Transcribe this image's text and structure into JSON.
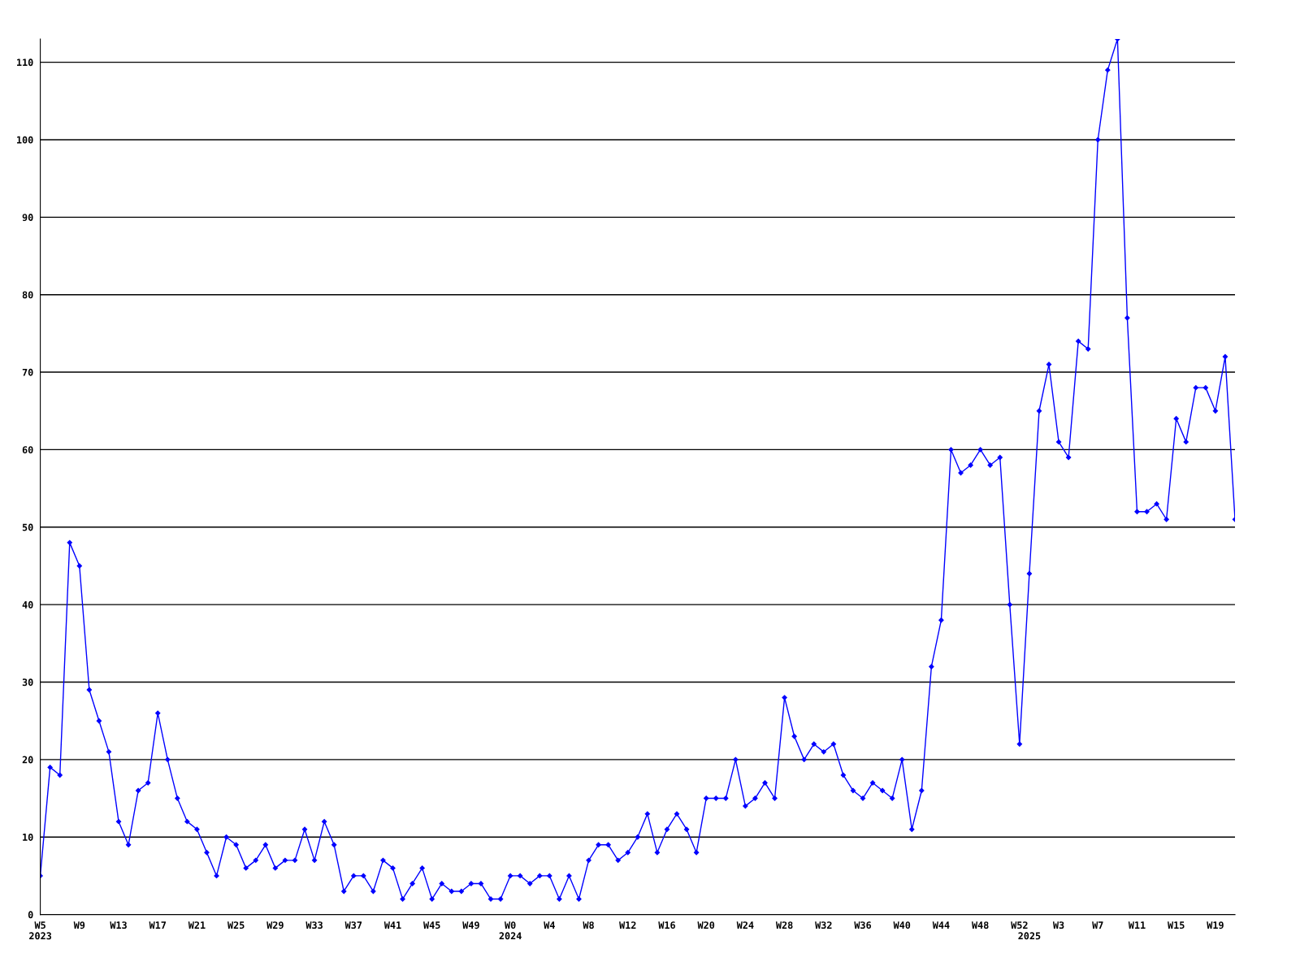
{
  "chart_data": {
    "type": "line",
    "categories": [
      "W5\n2023",
      null,
      null,
      null,
      "W9",
      null,
      null,
      null,
      "W13",
      null,
      null,
      null,
      "W17",
      null,
      null,
      null,
      "W21",
      null,
      null,
      null,
      "W25",
      null,
      null,
      null,
      "W29",
      null,
      null,
      null,
      "W33",
      null,
      null,
      null,
      "W37",
      null,
      null,
      null,
      "W41",
      null,
      null,
      null,
      "W45",
      null,
      null,
      null,
      "W49",
      null,
      null,
      null,
      "W0\n2024",
      null,
      null,
      null,
      "W4",
      null,
      null,
      null,
      "W8",
      null,
      null,
      null,
      "W12",
      null,
      null,
      null,
      "W16",
      null,
      null,
      null,
      "W20",
      null,
      null,
      null,
      "W24",
      null,
      null,
      null,
      "W28",
      null,
      null,
      null,
      "W32",
      null,
      null,
      null,
      "W36",
      null,
      null,
      null,
      "W40",
      null,
      null,
      null,
      "W44",
      null,
      null,
      null,
      "W48",
      null,
      null,
      null,
      "W52",
      "\n2025",
      null,
      null,
      "W3",
      null,
      null,
      null,
      "W7",
      null,
      null,
      null,
      "W11",
      null,
      null,
      null,
      "W15",
      null,
      null,
      null,
      "W19",
      null,
      null
    ],
    "series": [
      {
        "color": "#0000ff",
        "values": [
          5,
          19,
          18,
          48,
          45,
          29,
          25,
          21,
          12,
          9,
          16,
          17,
          26,
          20,
          15,
          12,
          11,
          8,
          5,
          10,
          9,
          6,
          7,
          9,
          6,
          7,
          7,
          11,
          7,
          12,
          9,
          3,
          5,
          5,
          3,
          7,
          6,
          2,
          4,
          6,
          2,
          4,
          3,
          3,
          4,
          4,
          2,
          2,
          5,
          5,
          4,
          5,
          5,
          2,
          5,
          2,
          7,
          9,
          9,
          7,
          8,
          10,
          13,
          8,
          11,
          13,
          11,
          8,
          15,
          15,
          15,
          20,
          14,
          15,
          17,
          15,
          28,
          23,
          20,
          22,
          21,
          22,
          18,
          16,
          15,
          17,
          16,
          15,
          20,
          11,
          16,
          32,
          38,
          60,
          57,
          58,
          60,
          58,
          59,
          40,
          22,
          44,
          65,
          71,
          61,
          59,
          74,
          73,
          100,
          109,
          113,
          77,
          52,
          52,
          53,
          51,
          64,
          61,
          68,
          68,
          65,
          72,
          51
        ]
      }
    ],
    "ylim": [
      0,
      113
    ],
    "yticks": [
      0,
      10,
      20,
      30,
      40,
      50,
      60,
      70,
      80,
      90,
      100,
      110
    ],
    "grid": "y",
    "marker": "diamond",
    "line_style": "solid",
    "legend": false
  }
}
